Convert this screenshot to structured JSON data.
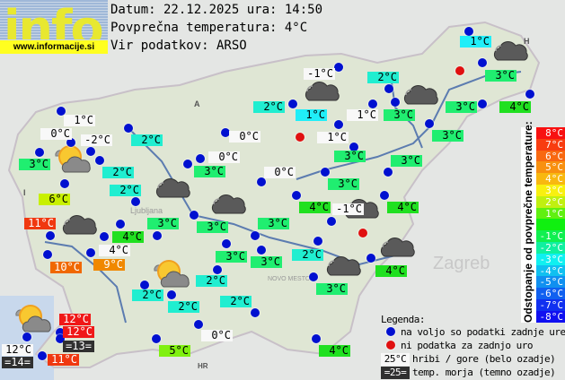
{
  "header": {
    "logo_text": "info",
    "logo_url": "www.informacije.si",
    "date_line": "Datum: 22.12.2025 ura: 14:50",
    "avg_line": "Povprečna temperatura: 4°C",
    "source_line": "Vir podatkov: ARSO"
  },
  "stations": [
    {
      "t": "1°C",
      "c": "c1"
    },
    {
      "t": "3°C",
      "c": "g3"
    },
    {
      "t": "4°C",
      "c": "g4"
    },
    {
      "t": "3°C",
      "c": "g3"
    },
    {
      "t": "-1°C",
      "c": "w"
    },
    {
      "t": "2°C",
      "c": "c2"
    },
    {
      "t": "3°C",
      "c": "g3"
    },
    {
      "t": "1°C",
      "c": "w"
    },
    {
      "t": "1°C",
      "c": "c1"
    },
    {
      "t": "1°C",
      "c": "w"
    },
    {
      "t": "3°C",
      "c": "g3"
    },
    {
      "t": "3°C",
      "c": "g3"
    },
    {
      "t": "3°C",
      "c": "g3"
    },
    {
      "t": "3°C",
      "c": "g3"
    },
    {
      "t": "4°C",
      "c": "g4"
    },
    {
      "t": "-1°C",
      "c": "w"
    },
    {
      "t": "4°C",
      "c": "g4"
    },
    {
      "t": "2°C",
      "c": "c2"
    },
    {
      "t": "1°C",
      "c": "w"
    },
    {
      "t": "0°C",
      "c": "w"
    },
    {
      "t": "-2°C",
      "c": "w"
    },
    {
      "t": "3°C",
      "c": "g3"
    },
    {
      "t": "2°C",
      "c": "c2"
    },
    {
      "t": "2°C",
      "c": "c2"
    },
    {
      "t": "2°C",
      "c": "c2"
    },
    {
      "t": "6°C",
      "c": "y6"
    },
    {
      "t": "0°C",
      "c": "w"
    },
    {
      "t": "0°C",
      "c": "w"
    },
    {
      "t": "3°C",
      "c": "g3"
    },
    {
      "t": "0°C",
      "c": "w"
    },
    {
      "t": "3°C",
      "c": "g3"
    },
    {
      "t": "3°C",
      "c": "g3"
    },
    {
      "t": "11°C",
      "c": "r11"
    },
    {
      "t": "4°C",
      "c": "g4"
    },
    {
      "t": "10°C",
      "c": "o10"
    },
    {
      "t": "4°C",
      "c": "w"
    },
    {
      "t": "9°C",
      "c": "o9"
    },
    {
      "t": "3°C",
      "c": "g3"
    },
    {
      "t": "3°C",
      "c": "g3"
    },
    {
      "t": "3°C",
      "c": "g3"
    },
    {
      "t": "2°C",
      "c": "c2"
    },
    {
      "t": "4°C",
      "c": "g4"
    },
    {
      "t": "3°C",
      "c": "g3"
    },
    {
      "t": "2°C",
      "c": "c2"
    },
    {
      "t": "2°C",
      "c": "c2"
    },
    {
      "t": "2°C",
      "c": "c2"
    },
    {
      "t": "2°C",
      "c": "c2"
    },
    {
      "t": "0°C",
      "c": "w"
    },
    {
      "t": "5°C",
      "c": "l5"
    },
    {
      "t": "4°C",
      "c": "g4"
    },
    {
      "t": "12°C",
      "c": "r12"
    },
    {
      "t": "12°C",
      "c": "r12"
    },
    {
      "t": "=13=",
      "c": "d"
    },
    {
      "t": "12°C",
      "c": "w"
    },
    {
      "t": "=14=",
      "c": "d"
    },
    {
      "t": "11°C",
      "c": "r11"
    }
  ],
  "scale": {
    "title": "Odstopanje od povprečne temperature:",
    "steps": [
      {
        "t": "8°C",
        "color": "#f81010"
      },
      {
        "t": "7°C",
        "color": "#f83c10"
      },
      {
        "t": "6°C",
        "color": "#f86810"
      },
      {
        "t": "5°C",
        "color": "#f89010"
      },
      {
        "t": "4°C",
        "color": "#f8b810"
      },
      {
        "t": "3°C",
        "color": "#f8f010"
      },
      {
        "t": "2°C",
        "color": "#c0f010"
      },
      {
        "t": "1°C",
        "color": "#60f010"
      },
      {
        "t": "",
        "color": "#10f010"
      },
      {
        "t": "-1°C",
        "color": "#10f050"
      },
      {
        "t": "-2°C",
        "color": "#10f0a0"
      },
      {
        "t": "-3°C",
        "color": "#10f0f0"
      },
      {
        "t": "-4°C",
        "color": "#10c0f0"
      },
      {
        "t": "-5°C",
        "color": "#1090f0"
      },
      {
        "t": "-6°C",
        "color": "#1060f0"
      },
      {
        "t": "-7°C",
        "color": "#1030f0"
      },
      {
        "t": "-8°C",
        "color": "#1010f0"
      }
    ]
  },
  "legend": {
    "title": "Legenda:",
    "available": "na voljo so podatki zadnje ure",
    "no_data": "ni podatka za zadnjo uro",
    "mountain_sample": "25°C",
    "mountain": "hribi / gore (belo ozadje)",
    "sea_sample": "=25=",
    "sea": "temp. morja (temno ozadje)"
  },
  "map_labels": {
    "zagreb": "Zagreb",
    "ljubljana": "Ljubljana",
    "novo_mesto": "NOVO MESTO",
    "austria": "A",
    "italy": "I",
    "hungary": "H",
    "croatia": "HR"
  },
  "colors": {
    "available_dot": "#0010d0",
    "no_data_dot": "#e01010"
  }
}
